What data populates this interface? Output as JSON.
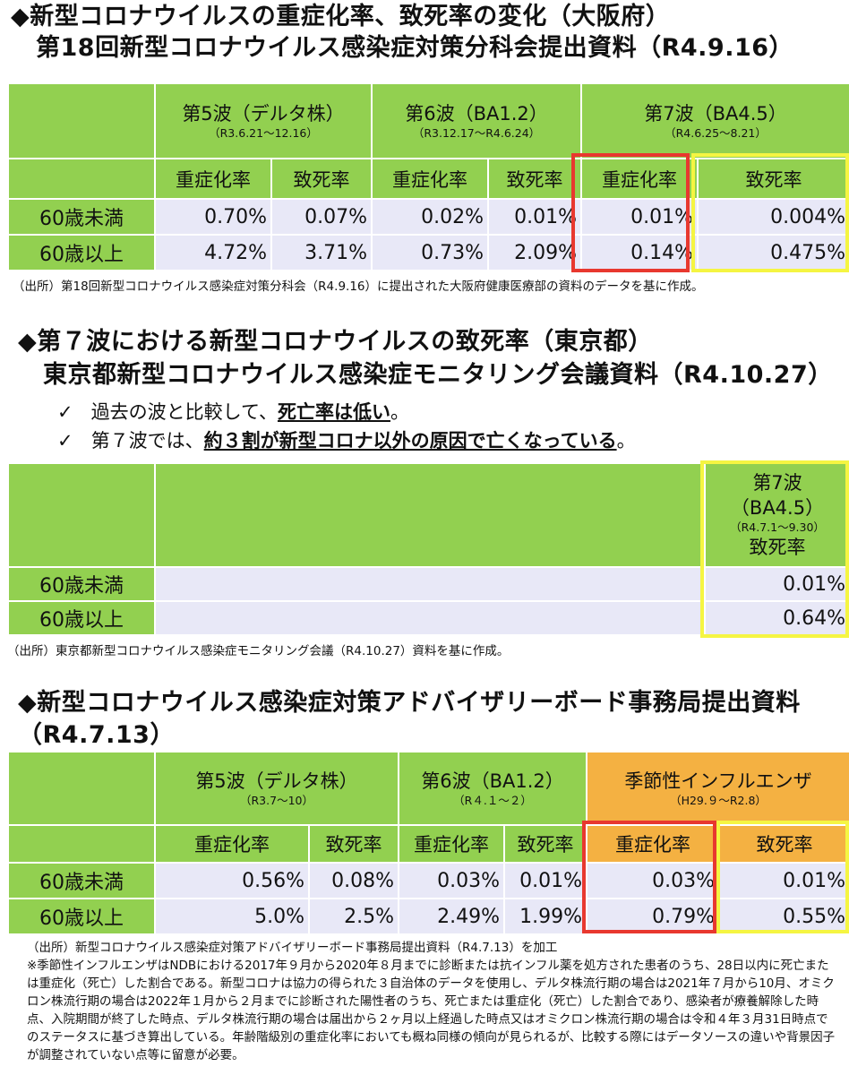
{
  "s1": {
    "title1": "◆新型コロナウイルスの重症化率、致死率の変化（大阪府）",
    "title2": "第18回新型コロナウイルス感染症対策分科会提出資料（R4.9.16）",
    "waves": [
      {
        "name": "第5波（デルタ株）",
        "dates": "（R3.6.21～12.16）"
      },
      {
        "name": "第6波（BA1.2）",
        "dates": "（R3.12.17～R4.6.24）"
      },
      {
        "name": "第7波（BA4.5）",
        "dates": "（R4.6.25～8.21）"
      }
    ],
    "metrics": [
      "重症化率",
      "致死率",
      "重症化率",
      "致死率",
      "重症化率",
      "致死率"
    ],
    "rows": [
      {
        "label": "60歳未満",
        "values": [
          "0.70%",
          "0.07%",
          "0.02%",
          "0.01%",
          "0.01%",
          "0.004%"
        ]
      },
      {
        "label": "60歳以上",
        "values": [
          "4.72%",
          "3.71%",
          "0.73%",
          "2.09%",
          "0.14%",
          "0.475%"
        ]
      }
    ],
    "source": "（出所）第18回新型コロナウイルス感染症対策分科会（R4.9.16）に提出された大阪府健康医療部の資料のデータを基に作成。"
  },
  "s2": {
    "title1": "◆第７波における新型コロナウイルスの致死率（東京都）",
    "title2": "東京都新型コロナウイルス感染症モニタリング会議資料（R4.10.27）",
    "b1_check": "✓",
    "b1_pre": "過去の波と比較して、",
    "b1_bold": "死亡率は低い",
    "b1_post": "。",
    "b2_check": "✓",
    "b2_pre": "第７波では、",
    "b2_bold": "約３割が新型コロナ以外の原因で亡くなっている",
    "b2_post": "。",
    "wave_name": "第7波",
    "wave_strain": "（BA4.5）",
    "wave_dates": "（R4.7.1～9.30）",
    "metric": "致死率",
    "rows": [
      {
        "label": "60歳未満",
        "value": "0.01%"
      },
      {
        "label": "60歳以上",
        "value": "0.64%"
      }
    ],
    "source": "（出所）東京都新型コロナウイルス感染症モニタリング会議（R4.10.27）資料を基に作成。"
  },
  "s3": {
    "title1": "◆新型コロナウイルス感染症対策アドバイザリーボード事務局提出資料",
    "title2": "（R4.7.13）",
    "waves": [
      {
        "name": "第5波（デルタ株）",
        "dates": "（R3.7～10）"
      },
      {
        "name": "第6波（BA1.2）",
        "dates": "（R４.１～２）"
      },
      {
        "name": "季節性インフルエンザ",
        "dates": "（H29.９～R2.8）"
      }
    ],
    "metrics": [
      "重症化率",
      "致死率",
      "重症化率",
      "致死率",
      "重症化率",
      "致死率"
    ],
    "rows": [
      {
        "label": "60歳未満",
        "values": [
          "0.56%",
          "0.08%",
          "0.03%",
          "0.01%",
          "0.03%",
          "0.01%"
        ]
      },
      {
        "label": "60歳以上",
        "values": [
          "5.0%",
          "2.5%",
          "2.49%",
          "1.99%",
          "0.79%",
          "0.55%"
        ]
      }
    ],
    "source": "（出所）新型コロナウイルス感染症対策アドバイザリーボード事務局提出資料（R4.7.13）を加工",
    "footnote": "※季節性インフルエンザはNDBにおける2017年９月から2020年８月までに診断または抗インフル薬を処方された患者のうち、28日以内に死亡または重症化（死亡）した割合である。新型コロナは協力の得られた３自治体のデータを使用し、デルタ株流行期の場合は2021年７月から10月、オミクロン株流行期の場合は2022年１月から２月までに診断された陽性者のうち、死亡または重症化（死亡）した割合であり、感染者が療養解除した時点、入院期間が終了した時点、デルタ株流行期の場合は届出から２ヶ月以上経過した時点又はオミクロン株流行期の場合は令和４年３月31日時点でのステータスに基づき算出している。年齢階級別の重症化率においても概ね同様の傾向が見られるが、比較する際にはデータソースの違いや背景因子が調整されていない点等に留意が必要。"
  },
  "colors": {
    "green": "#92d050",
    "lavender": "#e8e8f7",
    "orange": "#f4b142",
    "red_box": "#e8382f",
    "yellow_box": "#f5f542"
  }
}
